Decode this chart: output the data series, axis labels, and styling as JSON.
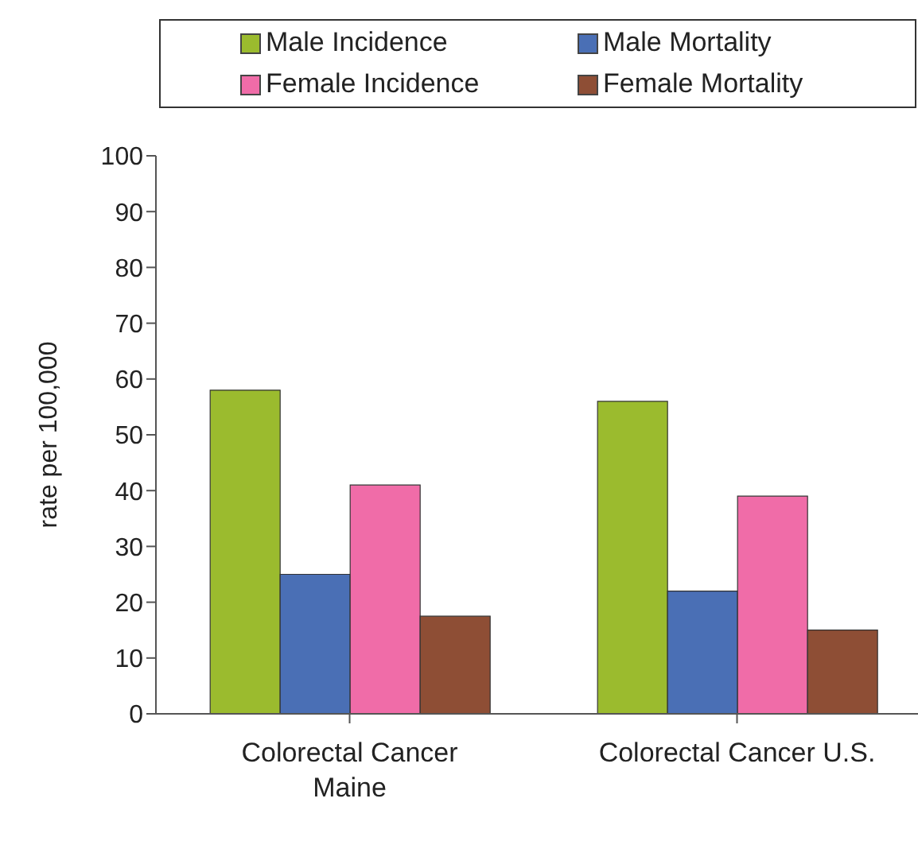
{
  "chart_data": {
    "type": "bar",
    "ylabel": "rate per 100,000",
    "categories": [
      "Colorectal Cancer Maine",
      "Colorectal Cancer U.S."
    ],
    "series": [
      {
        "name": "Male Incidence",
        "color": "#9bbb2e",
        "values": [
          58,
          56
        ]
      },
      {
        "name": "Male Mortality",
        "color": "#4a6fb5",
        "values": [
          25,
          22
        ]
      },
      {
        "name": "Female Incidence",
        "color": "#f06ca8",
        "values": [
          41,
          39
        ]
      },
      {
        "name": "Female Mortality",
        "color": "#8e4e35",
        "values": [
          17.5,
          15
        ]
      }
    ],
    "ylim": [
      0,
      100
    ],
    "yticks": [
      0,
      10,
      20,
      30,
      40,
      50,
      60,
      70,
      80,
      90,
      100
    ],
    "grid": false,
    "legend": "top"
  }
}
